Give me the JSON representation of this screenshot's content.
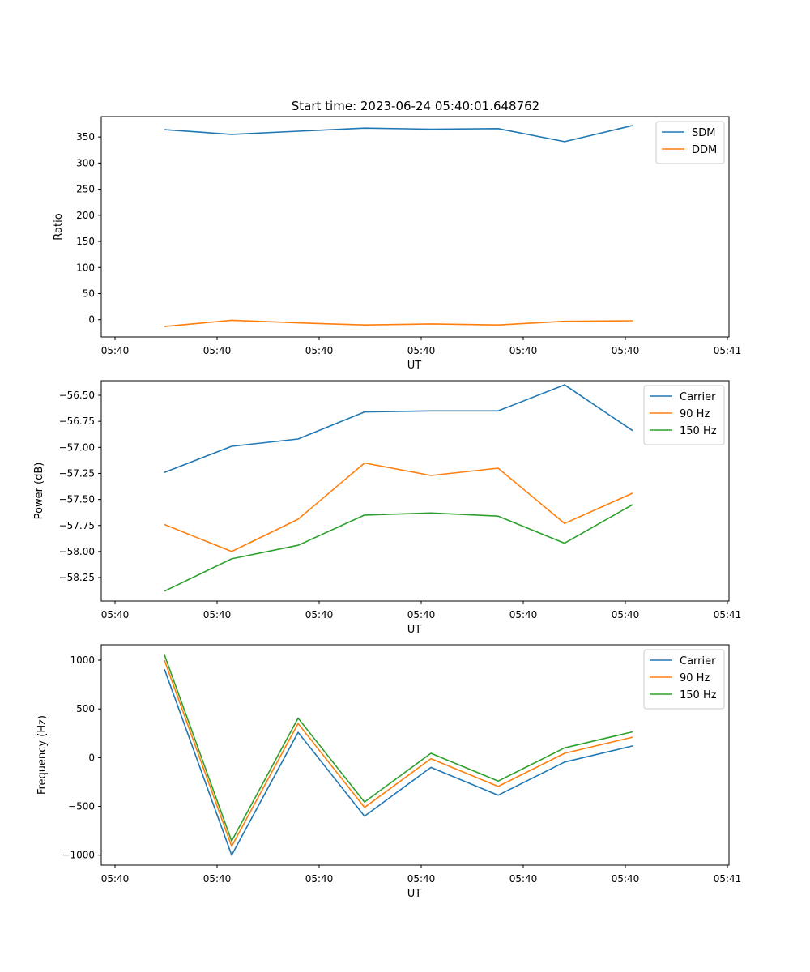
{
  "figure": {
    "title": "Start time: 2023-06-24 05:40:01.648762"
  },
  "chart_data": [
    {
      "type": "line",
      "xlabel": "UT",
      "ylabel": "Ratio",
      "xticks": [
        "05:40",
        "05:40",
        "05:40",
        "05:40",
        "05:40",
        "05:40",
        "05:41"
      ],
      "yticks": [
        0,
        50,
        100,
        150,
        200,
        250,
        300,
        350
      ],
      "ylim": [
        -33,
        389
      ],
      "legend_position": "upper right",
      "grid": false,
      "series": [
        {
          "name": "SDM",
          "color": "#1f77b4",
          "values": [
            364,
            355,
            361,
            367,
            365,
            366,
            341,
            372
          ]
        },
        {
          "name": "DDM",
          "color": "#ff7f0e",
          "values": [
            -13,
            -1,
            -6,
            -10,
            -8,
            -10,
            -3,
            -2
          ]
        }
      ]
    },
    {
      "type": "line",
      "xlabel": "UT",
      "ylabel": "Power (dB)",
      "xticks": [
        "05:40",
        "05:40",
        "05:40",
        "05:40",
        "05:40",
        "05:40",
        "05:41"
      ],
      "yticks": [
        -58.25,
        -58.0,
        -57.75,
        -57.5,
        -57.25,
        -57.0,
        -56.75,
        -56.5
      ],
      "ytick_labels": [
        "−58.25",
        "−58.00",
        "−57.75",
        "−57.50",
        "−57.25",
        "−57.00",
        "−56.75",
        "−56.50"
      ],
      "ylim": [
        -58.475,
        -56.36
      ],
      "legend_position": "upper right",
      "grid": false,
      "series": [
        {
          "name": "Carrier",
          "color": "#1f77b4",
          "values": [
            -57.24,
            -56.99,
            -56.92,
            -56.66,
            -56.65,
            -56.65,
            -56.4,
            -56.84
          ]
        },
        {
          "name": "90 Hz",
          "color": "#ff7f0e",
          "values": [
            -57.74,
            -58.0,
            -57.69,
            -57.15,
            -57.27,
            -57.2,
            -57.73,
            -57.44
          ]
        },
        {
          "name": "150 Hz",
          "color": "#2ca02c",
          "values": [
            -58.38,
            -58.07,
            -57.94,
            -57.65,
            -57.63,
            -57.66,
            -57.92,
            -57.55
          ]
        }
      ]
    },
    {
      "type": "line",
      "xlabel": "UT",
      "ylabel": "Frequency (Hz)",
      "xticks": [
        "05:40",
        "05:40",
        "05:40",
        "05:40",
        "05:40",
        "05:40",
        "05:41"
      ],
      "yticks": [
        -1000,
        -500,
        0,
        500,
        1000
      ],
      "ytick_labels": [
        "−1000",
        "−500",
        "0",
        "500",
        "1000"
      ],
      "ylim": [
        -1102,
        1158
      ],
      "legend_position": "upper right",
      "grid": false,
      "series": [
        {
          "name": "Carrier",
          "color": "#1f77b4",
          "values": [
            908,
            -1000,
            260,
            -600,
            -100,
            -385,
            -45,
            120
          ]
        },
        {
          "name": "90 Hz",
          "color": "#ff7f0e",
          "values": [
            1000,
            -910,
            350,
            -510,
            -10,
            -295,
            45,
            210
          ]
        },
        {
          "name": "150 Hz",
          "color": "#2ca02c",
          "values": [
            1055,
            -855,
            405,
            -455,
            45,
            -240,
            100,
            265
          ]
        }
      ]
    }
  ]
}
